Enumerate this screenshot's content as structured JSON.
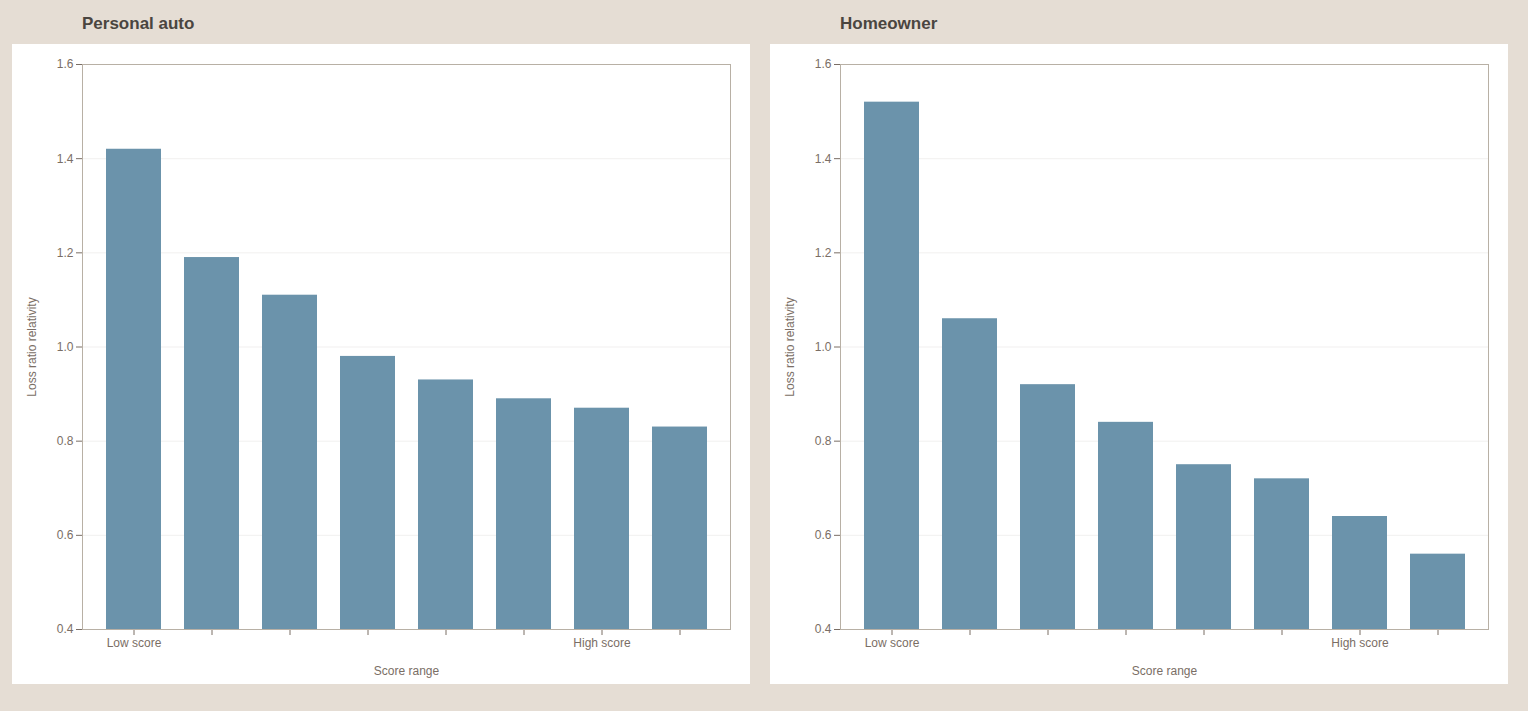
{
  "chart_data": [
    {
      "type": "bar",
      "title": "Personal auto",
      "xlabel": "Score range",
      "ylabel": "Loss ratio relativity",
      "categories": [
        "Low score",
        null,
        null,
        null,
        null,
        null,
        "High score",
        null
      ],
      "values": [
        1.42,
        1.19,
        1.11,
        0.98,
        0.93,
        0.89,
        0.87,
        0.83
      ],
      "color": "#6b93ab",
      "ylim": [
        0.4,
        1.6
      ],
      "yticks": [
        0.4,
        0.6,
        0.8,
        {
          "value": 1.0,
          "label": "1.0"
        },
        1.2,
        1.4,
        1.6
      ],
      "grid": true
    },
    {
      "type": "bar",
      "title": "Homeowner",
      "xlabel": "Score range",
      "ylabel": "Loss ratio relativity",
      "categories": [
        "Low score",
        null,
        null,
        null,
        null,
        null,
        "High score",
        null
      ],
      "values": [
        1.52,
        1.06,
        0.92,
        0.84,
        0.75,
        0.72,
        0.64,
        0.56
      ],
      "color": "#6b93ab",
      "ylim": [
        0.4,
        1.6
      ],
      "yticks": [
        0.4,
        0.6,
        0.8,
        {
          "value": 1.0,
          "label": "1.0"
        },
        1.2,
        1.4,
        1.6
      ],
      "grid": true
    }
  ]
}
